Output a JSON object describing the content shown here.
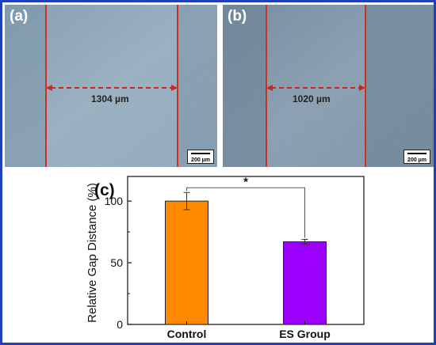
{
  "figure": {
    "border_color": "#1f3fbf"
  },
  "panel_a": {
    "label": "(a)",
    "gap_text": "1304 µm",
    "scale_text": "200 µm"
  },
  "panel_b": {
    "label": "(b)",
    "gap_text": "1020 µm",
    "scale_text": "200 µm"
  },
  "colors": {
    "guide_line": "#d03020",
    "arrow": "#c8281e",
    "control_bar": "#ff8a00",
    "es_bar": "#9b00ff"
  },
  "chart_data": {
    "type": "bar",
    "panel_label": "(c)",
    "categories": [
      "Control",
      "ES Group"
    ],
    "values": [
      100,
      67
    ],
    "errors": [
      7,
      2
    ],
    "colors": [
      "#ff8a00",
      "#9b00ff"
    ],
    "ylabel": "Relative Gap Distance (%)",
    "xlabel": "",
    "ylim": [
      0,
      120
    ],
    "yticks": [
      0,
      50,
      100
    ],
    "grid": false,
    "significance": {
      "between": [
        "Control",
        "ES Group"
      ],
      "symbol": "*"
    }
  }
}
